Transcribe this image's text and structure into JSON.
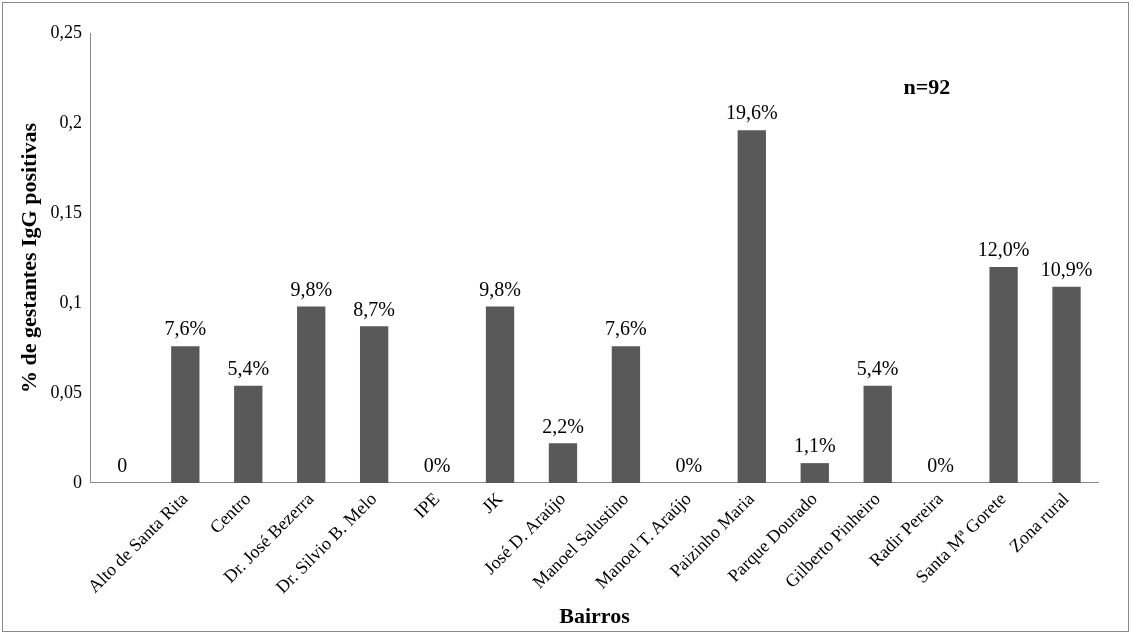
{
  "chart_data": {
    "type": "bar",
    "xlabel": "Bairros",
    "ylabel": "% de gestantes IgG positivas",
    "categories": [
      null,
      "Alto de Santa Rita",
      "Centro",
      "Dr. José Bezerra",
      "Dr. Silvio B. Melo",
      "IPE",
      "JK",
      "José D. Araújo",
      "Manoel Salustino",
      "Manoel T. Araújo",
      "Paizinho Maria",
      "Parque Dourado",
      "Gilberto Pinheiro",
      "Radir Pereira",
      "Santa Mª Gorete",
      "Zona rural"
    ],
    "values": [
      0,
      0.076,
      0.054,
      0.098,
      0.087,
      0,
      0.098,
      0.022,
      0.076,
      0,
      0.196,
      0.011,
      0.054,
      0,
      0.12,
      0.109
    ],
    "value_labels": [
      "0",
      "7,6%",
      "5,4%",
      "9,8%",
      "8,7%",
      "0%",
      "9,8%",
      "2,2%",
      "7,6%",
      "0%",
      "19,6%",
      "1,1%",
      "5,4%",
      "0%",
      "12,0%",
      "10,9%"
    ],
    "color": "#595959",
    "ylim": [
      0,
      0.25
    ],
    "yticks": [
      {
        "value": 0,
        "label": "0"
      },
      {
        "value": 0.05,
        "label": "0,05"
      },
      {
        "value": 0.1,
        "label": "0,1"
      },
      {
        "value": 0.15,
        "label": "0,15"
      },
      {
        "value": 0.2,
        "label": "0,2"
      },
      {
        "value": 0.25,
        "label": "0,25"
      }
    ],
    "annotations": [
      "n=92"
    ],
    "grid": false,
    "legend": false
  }
}
